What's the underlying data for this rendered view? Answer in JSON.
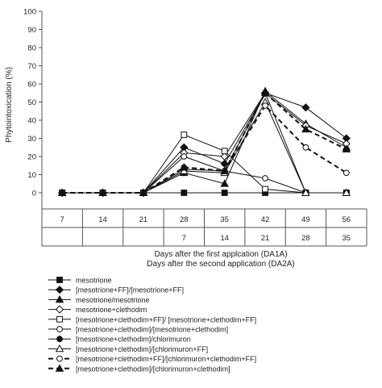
{
  "chart_data": {
    "type": "line",
    "ylabel": "Phytointoxication (%)",
    "ylim": [
      0,
      100
    ],
    "yticks": [
      0,
      10,
      20,
      30,
      40,
      50,
      60,
      70,
      80,
      90,
      100
    ],
    "x_row1": [
      "7",
      "14",
      "21",
      "28",
      "35",
      "42",
      "49",
      "56"
    ],
    "x_row2": [
      "",
      "",
      "",
      "7",
      "14",
      "21",
      "28",
      "35"
    ],
    "xlabel1": "Days after the first applcation (DA1A)",
    "xlabel2": "Days after the second application (DA2A)",
    "series": [
      {
        "name": "mesotrione",
        "marker": "square-filled",
        "dash": "solid",
        "width": 1,
        "values": [
          0,
          0,
          0,
          0,
          0,
          0,
          0,
          0
        ]
      },
      {
        "name": "[mesotrione+FF]/[mesotrione+FF]",
        "marker": "diamond-filled",
        "dash": "solid",
        "width": 1,
        "values": [
          0,
          0,
          0,
          25,
          16,
          55,
          47,
          30
        ]
      },
      {
        "name": "mesotrione/mesotrione",
        "marker": "triangle-filled",
        "dash": "solid",
        "width": 1,
        "values": [
          0,
          0,
          0,
          11,
          5,
          56,
          38,
          25
        ]
      },
      {
        "name": "mesotrione+clethodim",
        "marker": "diamond-open",
        "dash": "solid",
        "width": 1,
        "values": [
          0,
          0,
          0,
          22,
          20,
          55,
          37,
          27
        ]
      },
      {
        "name": "[mesotrione+clethodim+FF]/ [mesotrione+clethodim+FF]",
        "marker": "square-open",
        "dash": "solid",
        "width": 1,
        "values": [
          0,
          0,
          0,
          32,
          23,
          2,
          0,
          0
        ]
      },
      {
        "name": "[mesotrione+clethodim]/[mesotrione+clethodim]",
        "marker": "circle-open",
        "dash": "solid",
        "width": 1,
        "values": [
          0,
          0,
          0,
          20,
          12,
          8,
          0,
          0
        ]
      },
      {
        "name": "[mesotrione+clethodim]/chlorimuron",
        "marker": "circle-filled",
        "dash": "solid",
        "width": 1,
        "values": [
          0,
          0,
          0,
          13,
          12,
          55,
          0,
          0
        ]
      },
      {
        "name": "[mesotrione+clethodim]/[chlorimuron+FF]",
        "marker": "triangle-open",
        "dash": "solid",
        "width": 1,
        "values": [
          0,
          0,
          0,
          12,
          11,
          50,
          0,
          0
        ]
      },
      {
        "name": "[mesotrione+clethodim+FF]/[chlorimuron+clethodim+FF]",
        "marker": "circle-open",
        "dash": "dashed",
        "width": 2,
        "values": [
          0,
          0,
          0,
          14,
          12,
          48,
          25,
          11
        ]
      },
      {
        "name": "[mesotrione+clethodim]/[chlorimuron+clethodim]",
        "marker": "triangle-filled",
        "dash": "dashed",
        "width": 2,
        "values": [
          0,
          0,
          0,
          14,
          12,
          55,
          35,
          24
        ]
      }
    ],
    "grid": false,
    "legend_position": "bottom"
  }
}
